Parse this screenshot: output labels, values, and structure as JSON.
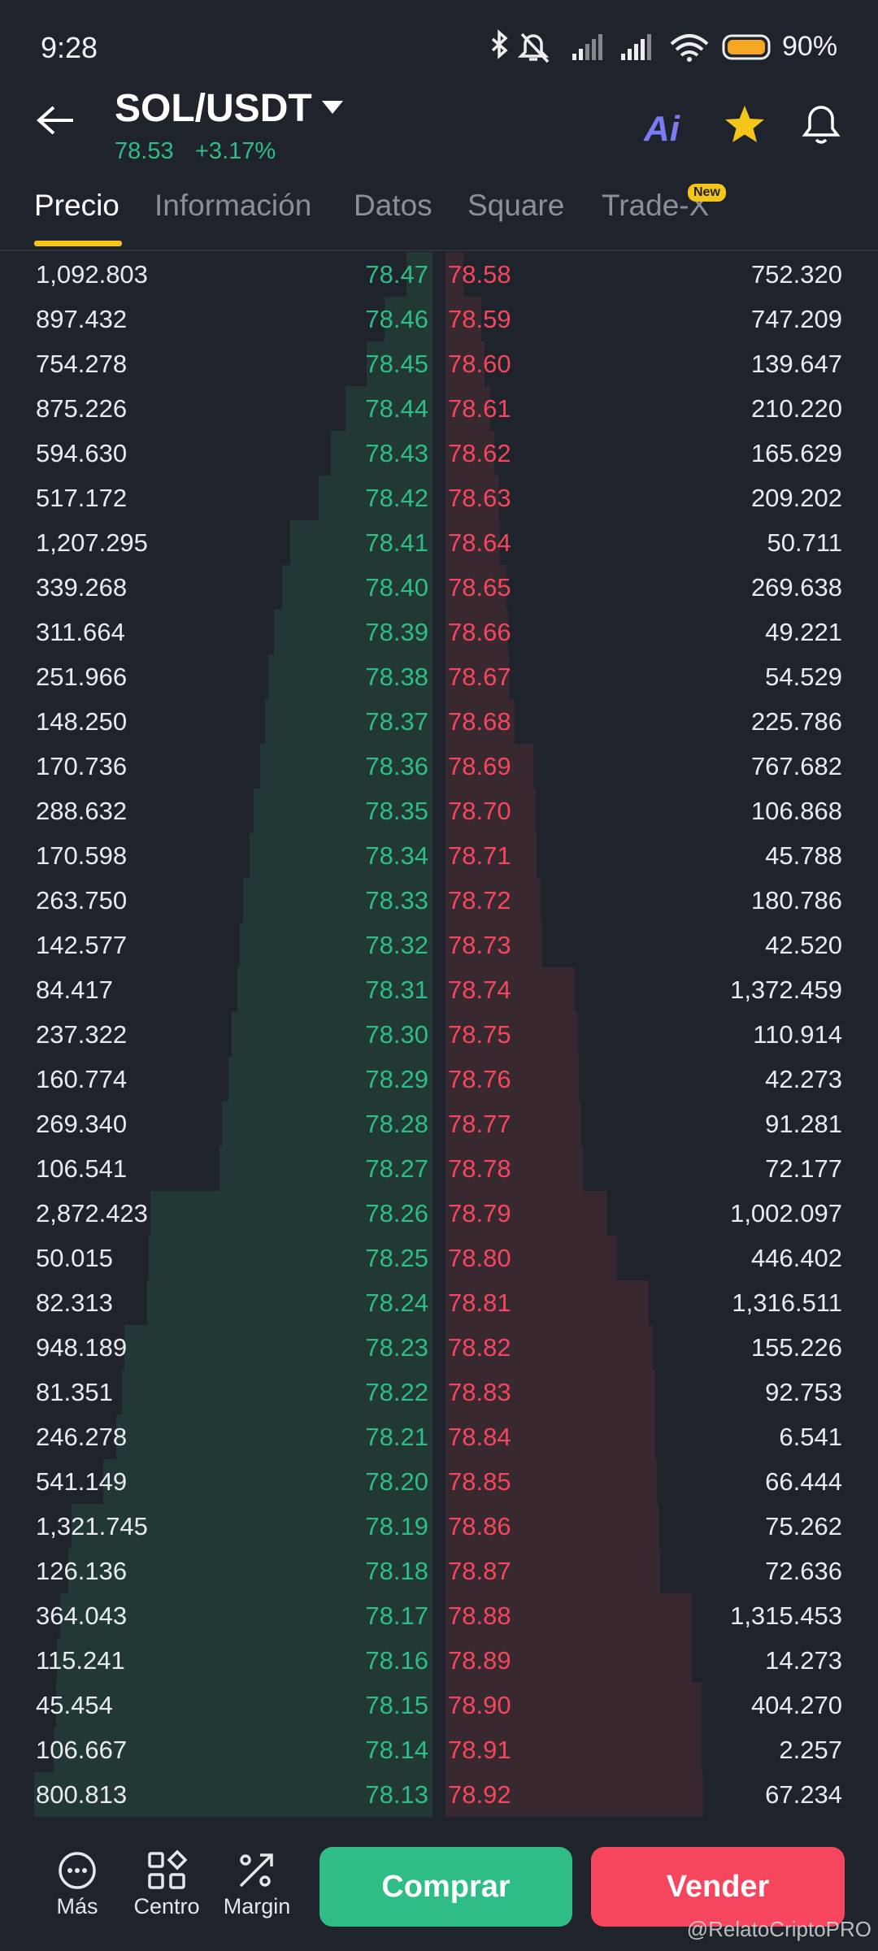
{
  "status_bar": {
    "time": "9:28",
    "battery": "90%"
  },
  "header": {
    "pair": "SOL/USDT",
    "price": "78.53",
    "change": "+3.17%",
    "ai_label": "Ai"
  },
  "tabs": [
    "Precio",
    "Información",
    "Datos",
    "Square",
    "Trade-X"
  ],
  "tab_badge": "New",
  "order_book": {
    "rows": [
      [
        "1,092.803",
        "78.47",
        "78.58",
        "752.320"
      ],
      [
        "897.432",
        "78.46",
        "78.59",
        "747.209"
      ],
      [
        "754.278",
        "78.45",
        "78.60",
        "139.647"
      ],
      [
        "875.226",
        "78.44",
        "78.61",
        "210.220"
      ],
      [
        "594.630",
        "78.43",
        "78.62",
        "165.629"
      ],
      [
        "517.172",
        "78.42",
        "78.63",
        "209.202"
      ],
      [
        "1,207.295",
        "78.41",
        "78.64",
        "50.711"
      ],
      [
        "339.268",
        "78.40",
        "78.65",
        "269.638"
      ],
      [
        "311.664",
        "78.39",
        "78.66",
        "49.221"
      ],
      [
        "251.966",
        "78.38",
        "78.67",
        "54.529"
      ],
      [
        "148.250",
        "78.37",
        "78.68",
        "225.786"
      ],
      [
        "170.736",
        "78.36",
        "78.69",
        "767.682"
      ],
      [
        "288.632",
        "78.35",
        "78.70",
        "106.868"
      ],
      [
        "170.598",
        "78.34",
        "78.71",
        "45.788"
      ],
      [
        "263.750",
        "78.33",
        "78.72",
        "180.786"
      ],
      [
        "142.577",
        "78.32",
        "78.73",
        "42.520"
      ],
      [
        "84.417",
        "78.31",
        "78.74",
        "1,372.459"
      ],
      [
        "237.322",
        "78.30",
        "78.75",
        "110.914"
      ],
      [
        "160.774",
        "78.29",
        "78.76",
        "42.273"
      ],
      [
        "269.340",
        "78.28",
        "78.77",
        "91.281"
      ],
      [
        "106.541",
        "78.27",
        "78.78",
        "72.177"
      ],
      [
        "2,872.423",
        "78.26",
        "78.79",
        "1,002.097"
      ],
      [
        "50.015",
        "78.25",
        "78.80",
        "446.402"
      ],
      [
        "82.313",
        "78.24",
        "78.81",
        "1,316.511"
      ],
      [
        "948.189",
        "78.23",
        "78.82",
        "155.226"
      ],
      [
        "81.351",
        "78.22",
        "78.83",
        "92.753"
      ],
      [
        "246.278",
        "78.21",
        "78.84",
        "6.541"
      ],
      [
        "541.149",
        "78.20",
        "78.85",
        "66.444"
      ],
      [
        "1,321.745",
        "78.19",
        "78.86",
        "75.262"
      ],
      [
        "126.136",
        "78.18",
        "78.87",
        "72.636"
      ],
      [
        "364.043",
        "78.17",
        "78.88",
        "1,315.453"
      ],
      [
        "115.241",
        "78.16",
        "78.89",
        "14.273"
      ],
      [
        "45.454",
        "78.15",
        "78.90",
        "404.270"
      ],
      [
        "106.667",
        "78.14",
        "78.91",
        "2.257"
      ],
      [
        "800.813",
        "78.13",
        "78.92",
        "67.234"
      ]
    ]
  },
  "bottom_bar": {
    "nav": [
      "Más",
      "Centro",
      "Margin"
    ],
    "buy": "Comprar",
    "sell": "Vender"
  },
  "watermark": "@RelatoCriptoPRO"
}
